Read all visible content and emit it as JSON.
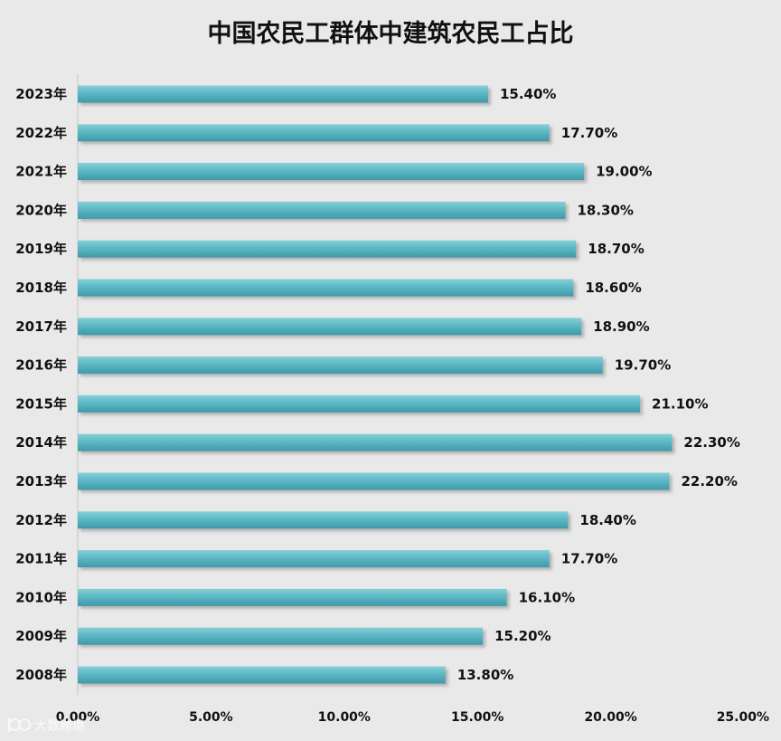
{
  "chart_data": {
    "type": "bar",
    "orientation": "horizontal",
    "title": "中国农民工群体中建筑农民工占比",
    "xlabel": "",
    "ylabel": "",
    "categories": [
      "2023年",
      "2022年",
      "2021年",
      "2020年",
      "2019年",
      "2018年",
      "2017年",
      "2016年",
      "2015年",
      "2014年",
      "2013年",
      "2012年",
      "2011年",
      "2010年",
      "2009年",
      "2008年"
    ],
    "values": [
      15.4,
      17.7,
      19.0,
      18.3,
      18.7,
      18.6,
      18.9,
      19.7,
      21.1,
      22.3,
      22.2,
      18.4,
      17.7,
      16.1,
      15.2,
      13.8
    ],
    "value_labels": [
      "15.40%",
      "17.70%",
      "19.00%",
      "18.30%",
      "18.70%",
      "18.60%",
      "18.90%",
      "19.70%",
      "21.10%",
      "22.30%",
      "22.20%",
      "18.40%",
      "17.70%",
      "16.10%",
      "15.20%",
      "13.80%"
    ],
    "xlim": [
      0,
      25
    ],
    "xticks": [
      0,
      5,
      10,
      15,
      20,
      25
    ],
    "xtick_labels": [
      "0.00%",
      "5.00%",
      "10.00%",
      "15.00%",
      "20.00%",
      "25.00%"
    ],
    "grid": false,
    "legend": "none",
    "colors": {
      "bar": "#5bb8c4",
      "bar_light": "#7fcbd4",
      "bar_dark": "#3f9aa8",
      "background": "#e9e9e9",
      "text": "#111111"
    }
  },
  "watermark": {
    "text": "大数跨境",
    "icon": "watermark-logo-icon"
  }
}
